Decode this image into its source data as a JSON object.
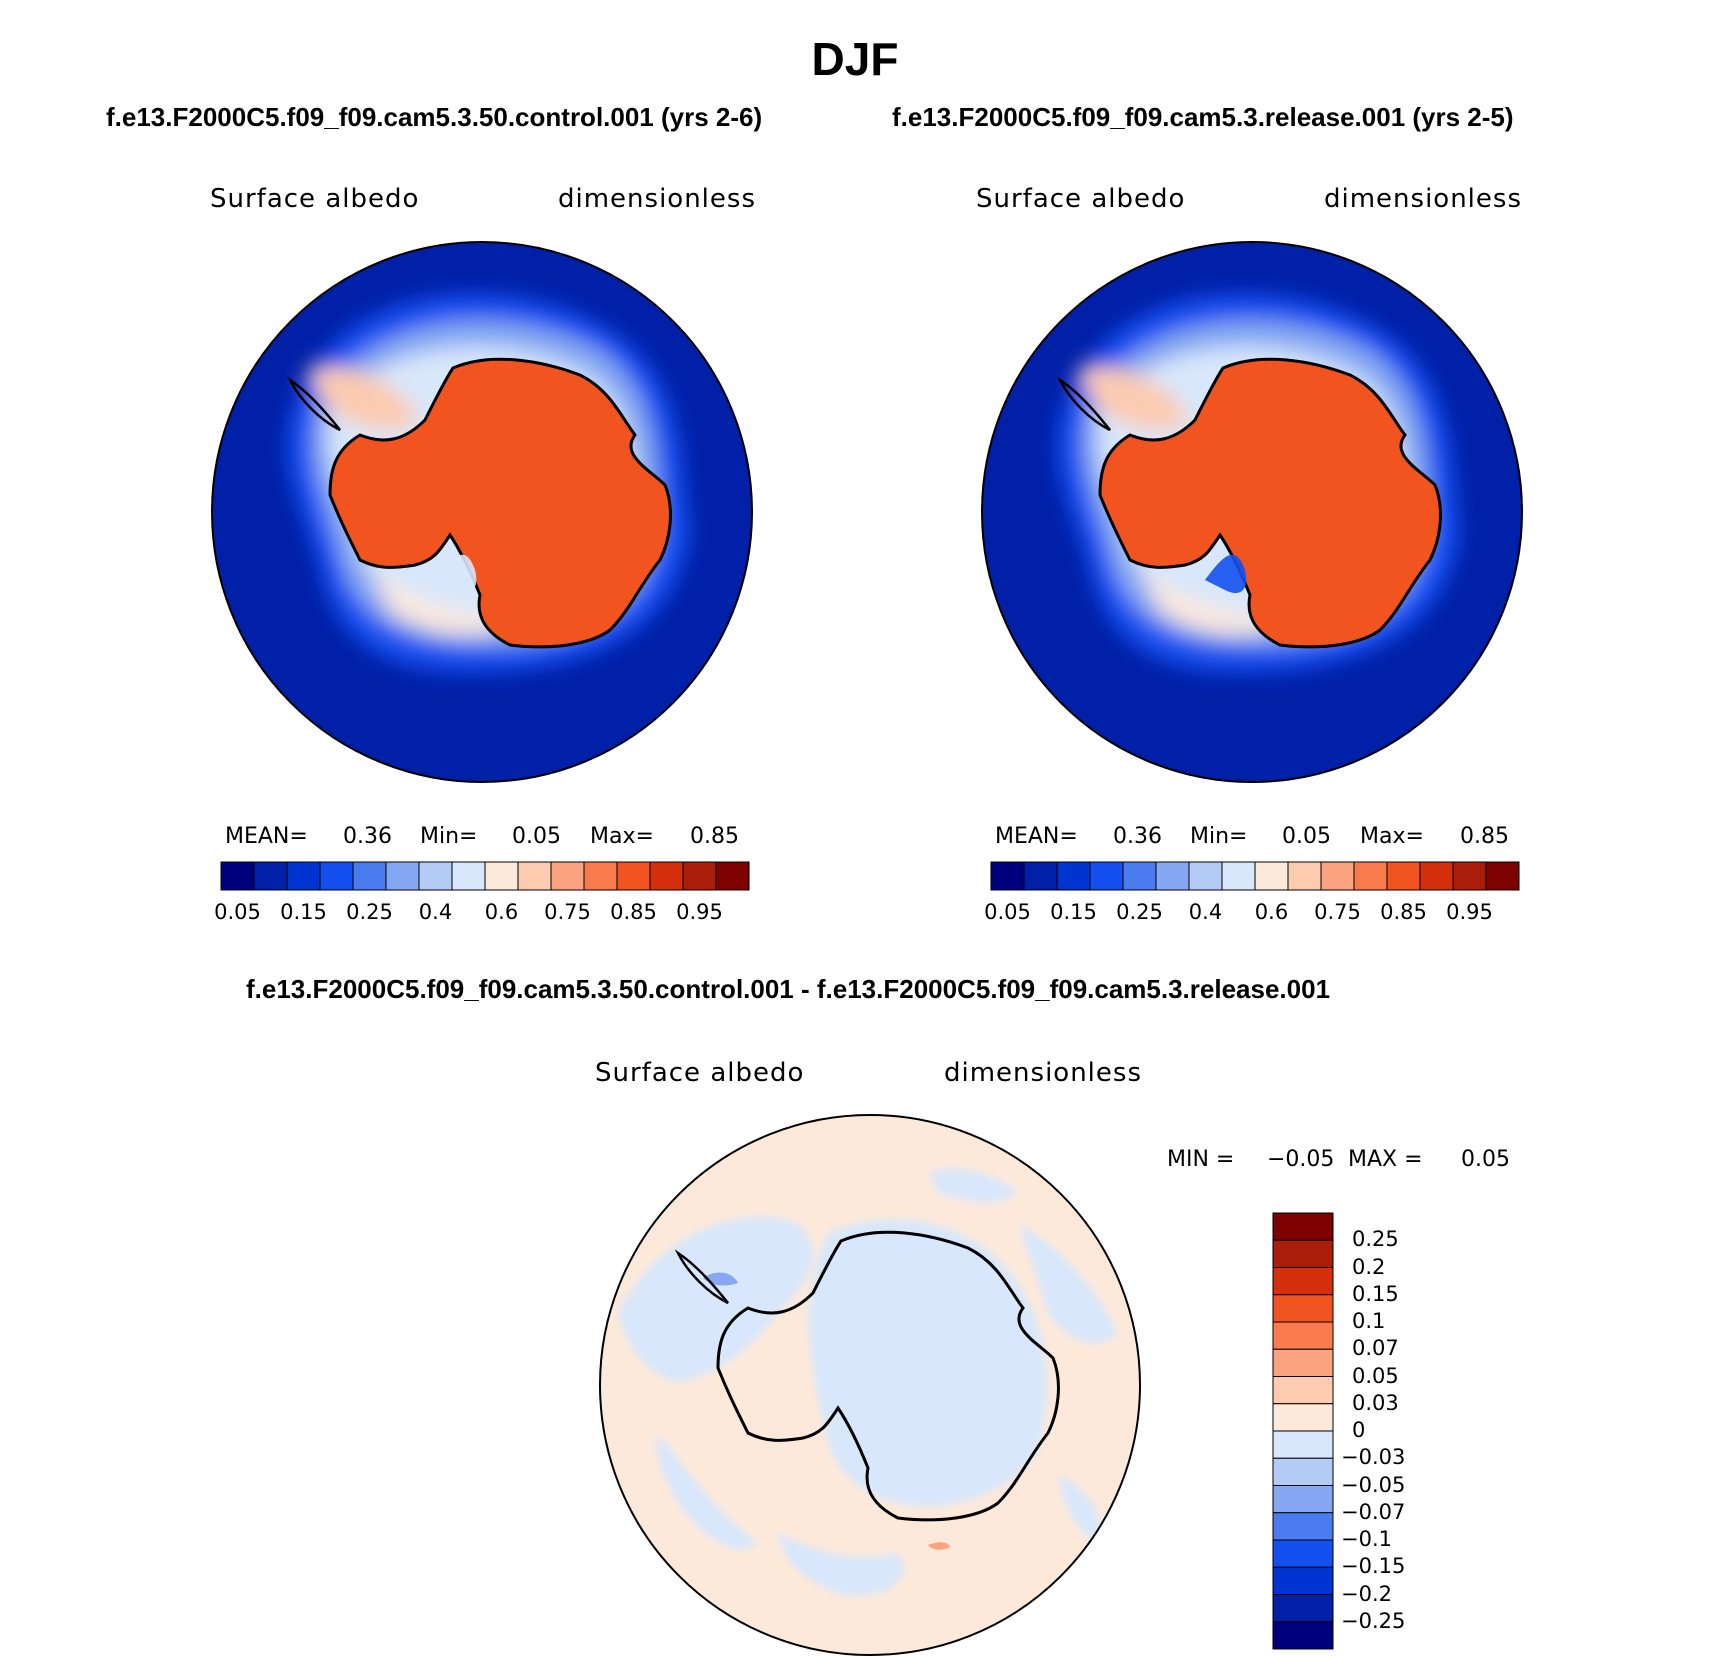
{
  "title": "DJF",
  "panels": [
    {
      "case_title": "f.e13.F2000C5.f09_f09.cam5.3.50.control.001 (yrs 2-6)",
      "variable": "Surface albedo",
      "units": "dimensionless",
      "stats": {
        "mean_label": "MEAN=",
        "mean": "0.36",
        "min_label": "Min=",
        "min": "0.05",
        "max_label": "Max=",
        "max": "0.85"
      }
    },
    {
      "case_title": "f.e13.F2000C5.f09_f09.cam5.3.release.001 (yrs 2-5)",
      "variable": "Surface albedo",
      "units": "dimensionless",
      "stats": {
        "mean_label": "MEAN=",
        "mean": "0.36",
        "min_label": "Min=",
        "min": "0.05",
        "max_label": "Max=",
        "max": "0.85"
      }
    }
  ],
  "colorbar": {
    "colors": [
      "#00007f",
      "#0020a8",
      "#0034d0",
      "#1450f0",
      "#4a7cf0",
      "#86a8f2",
      "#b4cbf6",
      "#d8e7fb",
      "#fde9da",
      "#fccbb0",
      "#fba27e",
      "#f97a4c",
      "#f2541f",
      "#d4300d",
      "#aa1d08",
      "#7f0000"
    ],
    "labels": [
      "0.05",
      "0.15",
      "0.25",
      "0.4",
      "0.6",
      "0.75",
      "0.85",
      "0.95"
    ]
  },
  "difference": {
    "case_title": "f.e13.F2000C5.f09_f09.cam5.3.50.control.001 - f.e13.F2000C5.f09_f09.cam5.3.release.001",
    "variable": "Surface albedo",
    "units": "dimensionless",
    "stats_min_label": "MIN =",
    "stats_min": "−0.05",
    "stats_max_label": "MAX =",
    "stats_max": "0.05",
    "colorbar": {
      "colors": [
        "#7f0000",
        "#aa1d08",
        "#d4300d",
        "#f2541f",
        "#f97a4c",
        "#fba27e",
        "#fccbb0",
        "#fde9da",
        "#d8e7fb",
        "#b4cbf6",
        "#86a8f2",
        "#4a7cf0",
        "#1450f0",
        "#0034d0",
        "#0020a8",
        "#00007f"
      ],
      "labels": [
        "0.25",
        "0.2",
        "0.15",
        "0.1",
        "0.07",
        "0.05",
        "0.03",
        "0",
        "−0.03",
        "−0.05",
        "−0.07",
        "−0.1",
        "−0.15",
        "−0.2",
        "−0.25"
      ]
    }
  }
}
